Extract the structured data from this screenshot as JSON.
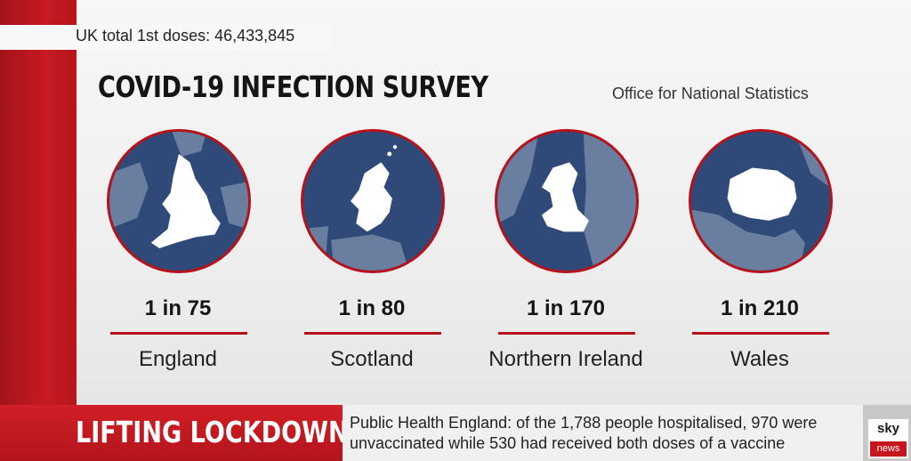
{
  "doses": {
    "text": "UK total 1st doses:  46,433,845"
  },
  "survey": {
    "title": "COVID-19 INFECTION SURVEY",
    "source": "Office for National Statistics"
  },
  "regions": [
    {
      "rate": "1 in 75",
      "name": "England",
      "icon": "england-map-icon"
    },
    {
      "rate": "1 in 80",
      "name": "Scotland",
      "icon": "scotland-map-icon"
    },
    {
      "rate": "1 in 170",
      "name": "Northern Ireland",
      "icon": "wales-map-icon"
    },
    {
      "rate": "1 in 210",
      "name": "Wales",
      "icon": "northern-ireland-map-icon"
    }
  ],
  "banner": {
    "headline": "LIFTING LOCKDOWN",
    "ticker": "Public Health England: of the 1,788 people hospitalised, 970 were unvaccinated while 530 had received both doses of a vaccine"
  },
  "logo": {
    "top": "sky",
    "bottom": "news"
  },
  "colors": {
    "accent_red": "#b7121a",
    "globe_blue": "#2f4a78"
  }
}
